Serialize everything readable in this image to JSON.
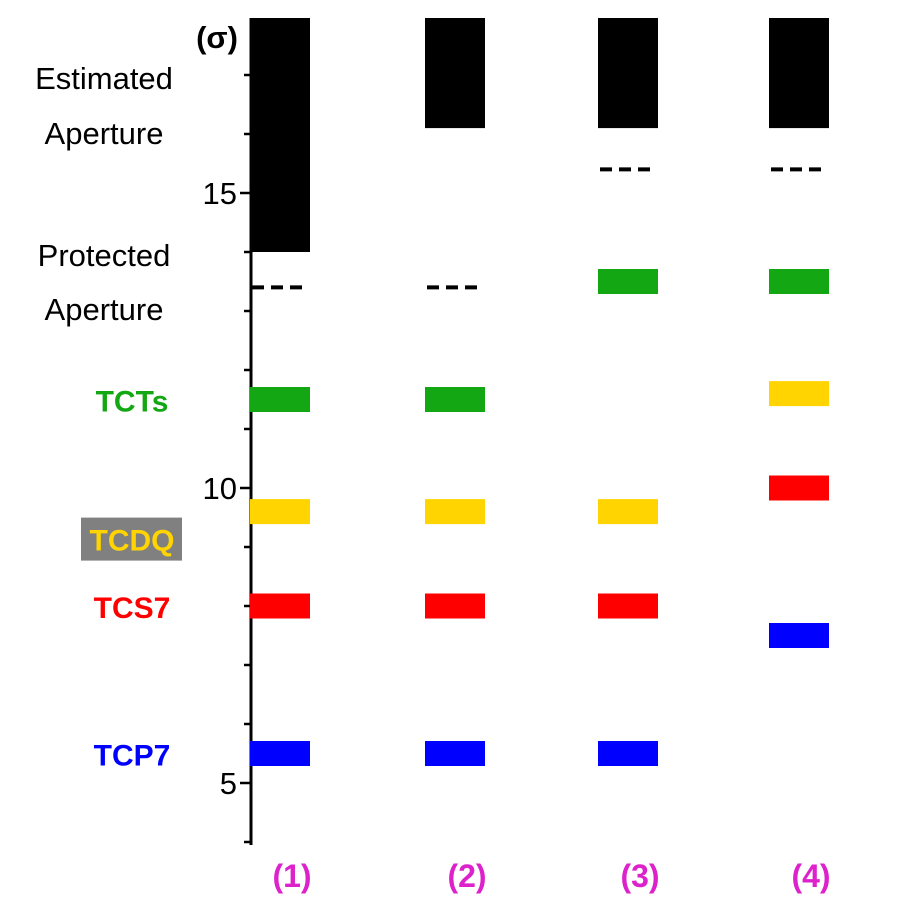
{
  "chart_data": {
    "type": "bar",
    "title": "",
    "ylabel": "(σ)",
    "xlabel": "",
    "ylim": [
      4,
      17.8
    ],
    "y_ticks": [
      5,
      10,
      15
    ],
    "columns": [
      "(1)",
      "(2)",
      "(3)",
      "(4)"
    ],
    "column_label_color": "#dd22cc",
    "aperture_labels": {
      "estimated": [
        "Estimated",
        "Aperture"
      ],
      "protected": [
        "Protected",
        "Aperture"
      ]
    },
    "estimated_aperture": {
      "color": "#000000",
      "values": [
        14.0,
        16.1,
        16.1,
        16.1
      ]
    },
    "protected_aperture": {
      "color": "#000000",
      "values": [
        13.4,
        13.4,
        15.4,
        15.4
      ]
    },
    "series": [
      {
        "name": "TCTs",
        "color": "#13a813",
        "label_bg": "",
        "values": [
          11.5,
          11.5,
          13.5,
          13.5
        ]
      },
      {
        "name": "TCDQ",
        "color": "#ffd400",
        "label_bg": "#808080",
        "values": [
          9.6,
          9.6,
          9.6,
          11.6
        ]
      },
      {
        "name": "TCS7",
        "color": "#ff0000",
        "label_bg": "",
        "values": [
          8.0,
          8.0,
          8.0,
          10.0
        ]
      },
      {
        "name": "TCP7",
        "color": "#0000ff",
        "label_bg": "",
        "values": [
          5.5,
          5.5,
          5.5,
          7.5
        ]
      }
    ]
  }
}
